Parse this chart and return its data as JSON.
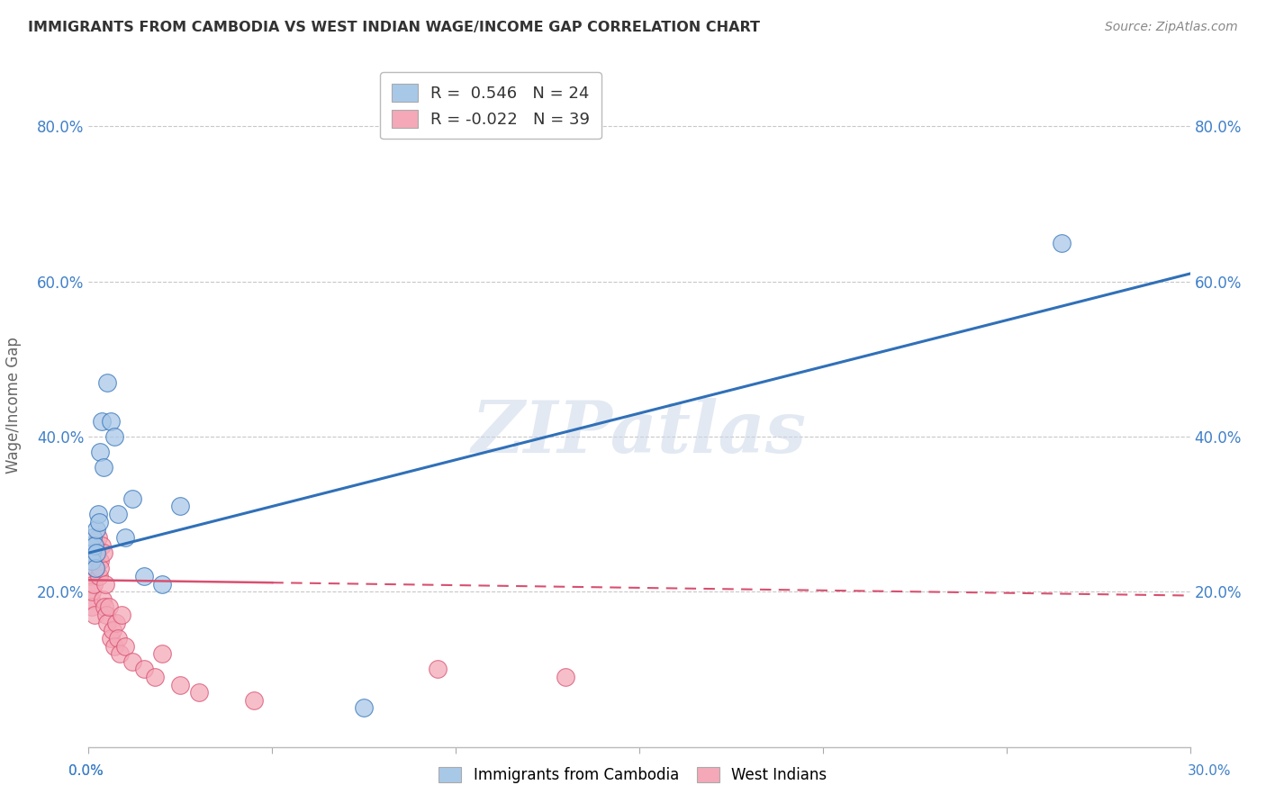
{
  "title": "IMMIGRANTS FROM CAMBODIA VS WEST INDIAN WAGE/INCOME GAP CORRELATION CHART",
  "source": "Source: ZipAtlas.com",
  "ylabel": "Wage/Income Gap",
  "yticks": [
    20.0,
    40.0,
    60.0,
    80.0
  ],
  "ytick_labels": [
    "20.0%",
    "40.0%",
    "60.0%",
    "80.0%"
  ],
  "legend_bottom": [
    "Immigrants from Cambodia",
    "West Indians"
  ],
  "cambodia_color": "#a8c8e8",
  "west_indian_color": "#f4a8b8",
  "cambodia_line_color": "#3070b8",
  "west_indian_line_color": "#d85070",
  "background_color": "#ffffff",
  "grid_color": "#c8c8c8",
  "watermark": "ZIPatlas",
  "xlim": [
    0.0,
    30.0
  ],
  "ylim": [
    0.0,
    88.0
  ],
  "cam_R": "0.546",
  "cam_N": "24",
  "wi_R": "-0.022",
  "wi_N": "39",
  "cambodia_x": [
    0.05,
    0.08,
    0.1,
    0.12,
    0.15,
    0.18,
    0.2,
    0.22,
    0.25,
    0.28,
    0.3,
    0.35,
    0.4,
    0.5,
    0.6,
    0.7,
    0.8,
    1.0,
    1.2,
    1.5,
    2.0,
    2.5,
    7.5,
    26.5
  ],
  "cambodia_y": [
    26.0,
    25.0,
    24.0,
    27.0,
    26.0,
    23.0,
    28.0,
    25.0,
    30.0,
    29.0,
    38.0,
    42.0,
    36.0,
    47.0,
    42.0,
    40.0,
    30.0,
    27.0,
    32.0,
    22.0,
    21.0,
    31.0,
    5.0,
    65.0
  ],
  "west_indian_x": [
    0.04,
    0.06,
    0.08,
    0.1,
    0.12,
    0.14,
    0.16,
    0.18,
    0.2,
    0.22,
    0.25,
    0.28,
    0.3,
    0.32,
    0.35,
    0.38,
    0.4,
    0.42,
    0.45,
    0.48,
    0.5,
    0.55,
    0.6,
    0.65,
    0.7,
    0.75,
    0.8,
    0.85,
    0.9,
    1.0,
    1.2,
    1.5,
    1.8,
    2.0,
    2.5,
    3.0,
    4.5,
    9.5,
    13.0
  ],
  "west_indian_y": [
    22.0,
    19.0,
    18.0,
    20.0,
    24.0,
    21.0,
    17.0,
    23.0,
    25.0,
    26.0,
    27.0,
    22.0,
    24.0,
    23.0,
    26.0,
    19.0,
    25.0,
    18.0,
    21.0,
    17.0,
    16.0,
    18.0,
    14.0,
    15.0,
    13.0,
    16.0,
    14.0,
    12.0,
    17.0,
    13.0,
    11.0,
    10.0,
    9.0,
    12.0,
    8.0,
    7.0,
    6.0,
    10.0,
    9.0
  ],
  "cam_line_x0": 0.0,
  "cam_line_y0": 25.0,
  "cam_line_x1": 30.0,
  "cam_line_y1": 61.0,
  "wi_line_x0": 0.0,
  "wi_line_y0": 21.5,
  "wi_line_x1": 30.0,
  "wi_line_y1": 19.5
}
